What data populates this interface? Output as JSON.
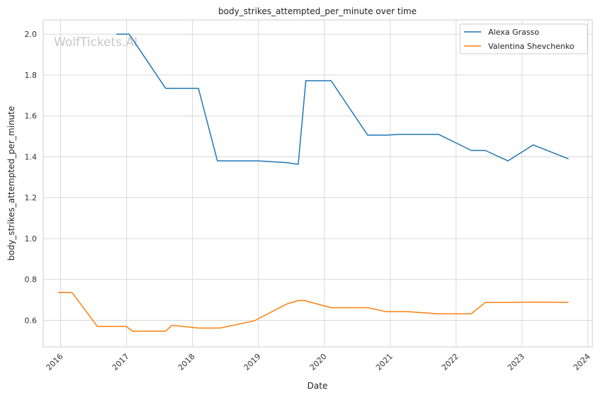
{
  "chart_data": {
    "type": "line",
    "title": "body_strikes_attempted_per_minute over time",
    "xlabel": "Date",
    "ylabel": "body_strikes_attempted_per_minute",
    "watermark": "WolfTickets.AI",
    "x_ticks": [
      "2016",
      "2017",
      "2018",
      "2019",
      "2020",
      "2021",
      "2022",
      "2023",
      "2024"
    ],
    "y_ticks": [
      0.6,
      0.8,
      1.0,
      1.2,
      1.4,
      1.6,
      1.8,
      2.0
    ],
    "xlim": [
      "2015-09-27",
      "2024-01-26"
    ],
    "ylim": [
      0.47,
      2.07
    ],
    "grid": true,
    "legend_position": "top-right",
    "series": [
      {
        "name": "Alexa Grasso",
        "color": "#1f77b4",
        "points": [
          [
            "2016-11-05",
            2.0
          ],
          [
            "2017-01-15",
            2.0
          ],
          [
            "2017-08-05",
            1.735
          ],
          [
            "2018-02-03",
            1.735
          ],
          [
            "2018-05-19",
            1.38
          ],
          [
            "2019-01-01",
            1.38
          ],
          [
            "2019-06-08",
            1.371
          ],
          [
            "2019-08-10",
            1.363
          ],
          [
            "2019-09-21",
            1.772
          ],
          [
            "2020-02-08",
            1.772
          ],
          [
            "2020-08-29",
            1.506
          ],
          [
            "2020-12-12",
            1.506
          ],
          [
            "2021-02-20",
            1.51
          ],
          [
            "2021-09-25",
            1.51
          ],
          [
            "2022-03-26",
            1.431
          ],
          [
            "2022-06-11",
            1.431
          ],
          [
            "2022-10-15",
            1.38
          ],
          [
            "2023-03-04",
            1.458
          ],
          [
            "2023-09-16",
            1.39
          ]
        ]
      },
      {
        "name": "Valentina Shevchenko",
        "color": "#ff7f0e",
        "points": [
          [
            "2015-12-19",
            0.736
          ],
          [
            "2016-03-05",
            0.736
          ],
          [
            "2016-07-23",
            0.57
          ],
          [
            "2016-12-30",
            0.57
          ],
          [
            "2017-02-04",
            0.547
          ],
          [
            "2017-08-05",
            0.547
          ],
          [
            "2017-09-09",
            0.576
          ],
          [
            "2018-02-03",
            0.562
          ],
          [
            "2018-06-02",
            0.562
          ],
          [
            "2018-12-08",
            0.597
          ],
          [
            "2019-06-08",
            0.68
          ],
          [
            "2019-08-10",
            0.697
          ],
          [
            "2019-09-14",
            0.697
          ],
          [
            "2020-02-08",
            0.662
          ],
          [
            "2020-08-29",
            0.662
          ],
          [
            "2020-12-12",
            0.642
          ],
          [
            "2021-04-10",
            0.642
          ],
          [
            "2021-09-25",
            0.632
          ],
          [
            "2022-03-26",
            0.632
          ],
          [
            "2022-06-11",
            0.687
          ],
          [
            "2022-10-15",
            0.687
          ],
          [
            "2023-03-04",
            0.689
          ],
          [
            "2023-09-16",
            0.688
          ]
        ]
      }
    ]
  }
}
